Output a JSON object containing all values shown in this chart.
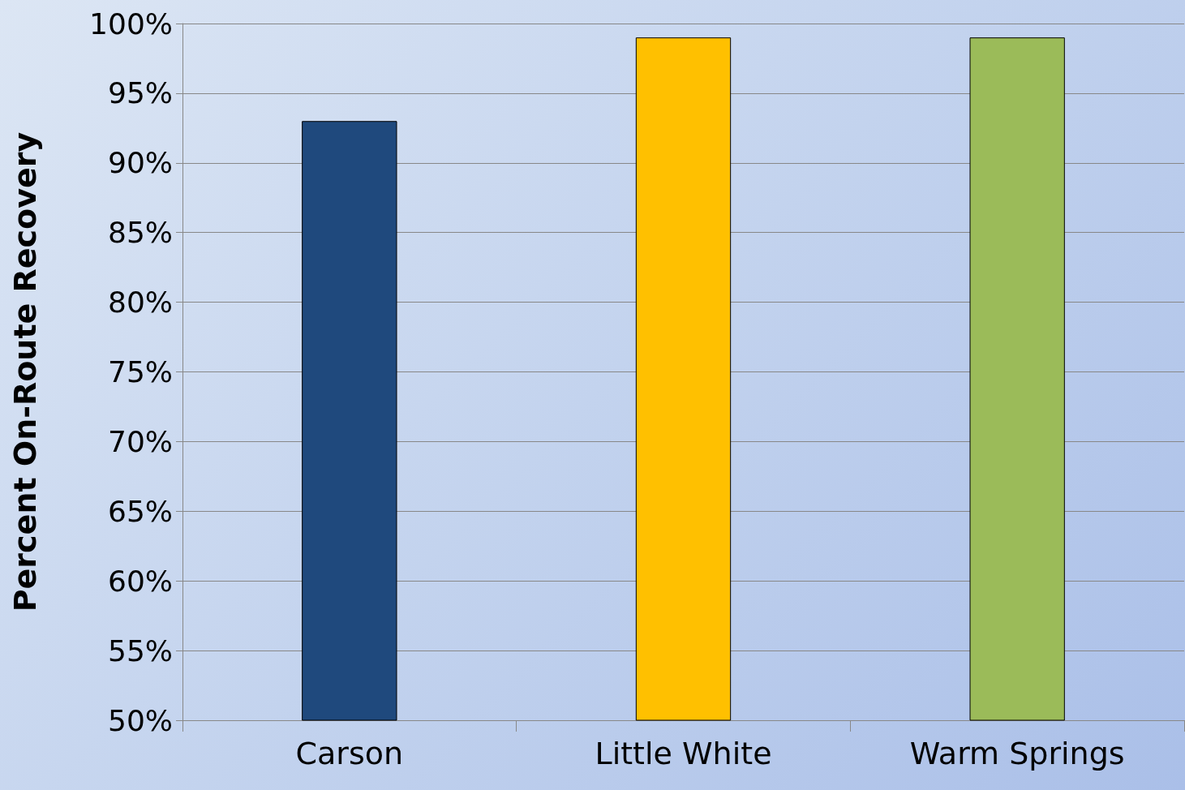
{
  "chart_data": {
    "type": "bar",
    "ylabel": "Percent On-Route Recovery",
    "categories": [
      "Carson",
      "Little White",
      "Warm Springs"
    ],
    "values": [
      93,
      99,
      99
    ],
    "colors": [
      "#1f497d",
      "#ffc000",
      "#9bbb59"
    ],
    "ylim": [
      50,
      100
    ],
    "yticks": [
      {
        "value": 50,
        "label": "50%"
      },
      {
        "value": 55,
        "label": "55%"
      },
      {
        "value": 60,
        "label": "60%"
      },
      {
        "value": 65,
        "label": "65%"
      },
      {
        "value": 70,
        "label": "70%"
      },
      {
        "value": 75,
        "label": "75%"
      },
      {
        "value": 80,
        "label": "80%"
      },
      {
        "value": 85,
        "label": "85%"
      },
      {
        "value": 90,
        "label": "90%"
      },
      {
        "value": 95,
        "label": "95%"
      },
      {
        "value": 100,
        "label": "100%"
      }
    ],
    "grid": "y"
  }
}
